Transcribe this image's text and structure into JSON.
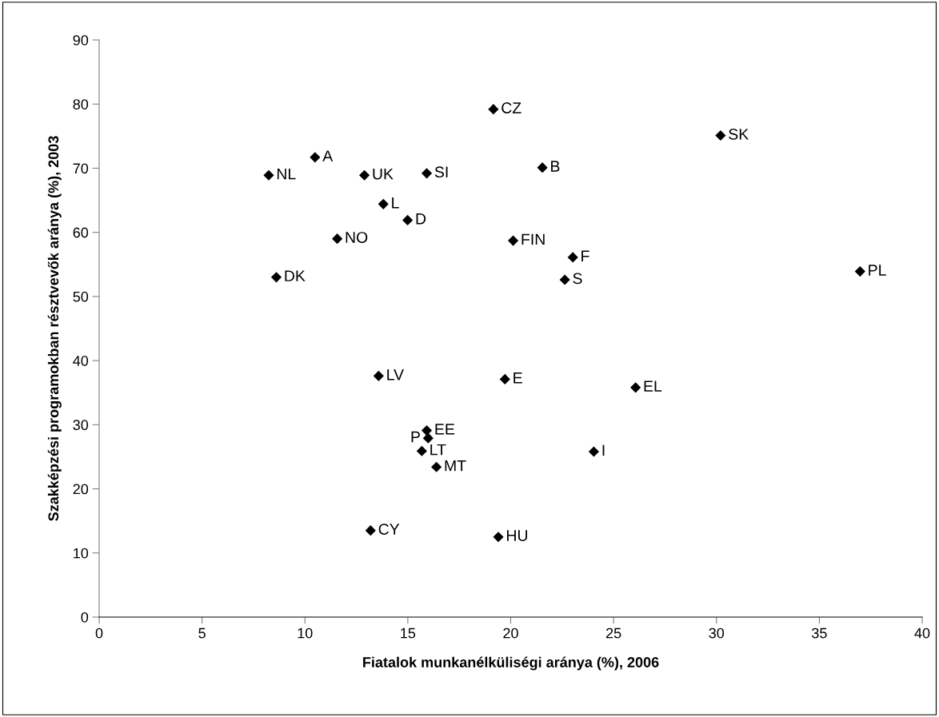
{
  "chart_data": {
    "type": "scatter",
    "xlabel": "Fiatalok munkanélküliségi aránya (%), 2006",
    "ylabel": "Szakképzési programokban résztvevők aránya (%), 2003",
    "x": [
      8.24,
      10.49,
      12.89,
      15.92,
      13.81,
      14.99,
      11.57,
      8.61,
      19.16,
      30.2,
      21.54,
      20.12,
      23.02,
      22.63,
      36.98,
      13.58,
      19.72,
      15.92,
      15.99,
      15.68,
      16.39,
      13.19,
      19.4,
      26.07,
      24.04
    ],
    "series": [
      {
        "color": "#000000",
        "values": [
          68.9,
          71.7,
          68.9,
          69.2,
          64.4,
          61.9,
          59.0,
          53.0,
          79.2,
          75.1,
          70.1,
          58.7,
          56.1,
          52.6,
          53.9,
          37.6,
          37.1,
          29.1,
          27.9,
          25.9,
          23.4,
          13.5,
          12.5,
          35.8,
          25.8
        ]
      }
    ],
    "annotations": [
      {
        "text": "NL",
        "x": 8.24,
        "y": 68.9
      },
      {
        "text": "A",
        "x": 10.49,
        "y": 71.7
      },
      {
        "text": "UK",
        "x": 12.89,
        "y": 68.9
      },
      {
        "text": "SI",
        "x": 15.92,
        "y": 69.2
      },
      {
        "text": "L",
        "x": 13.81,
        "y": 64.4
      },
      {
        "text": "D",
        "x": 14.99,
        "y": 61.9
      },
      {
        "text": "NO",
        "x": 11.57,
        "y": 59.0
      },
      {
        "text": "DK",
        "x": 8.61,
        "y": 53.0
      },
      {
        "text": "CZ",
        "x": 19.16,
        "y": 79.2
      },
      {
        "text": "SK",
        "x": 30.2,
        "y": 75.1
      },
      {
        "text": "B",
        "x": 21.54,
        "y": 70.1
      },
      {
        "text": "FIN",
        "x": 20.12,
        "y": 58.7
      },
      {
        "text": "F",
        "x": 23.02,
        "y": 56.1
      },
      {
        "text": "S",
        "x": 22.63,
        "y": 52.6
      },
      {
        "text": "PL",
        "x": 36.98,
        "y": 53.9
      },
      {
        "text": "LV",
        "x": 13.58,
        "y": 37.6
      },
      {
        "text": "E",
        "x": 19.72,
        "y": 37.1
      },
      {
        "text": "EE",
        "x": 15.92,
        "y": 29.1
      },
      {
        "text": "P",
        "x": 15.99,
        "y": 27.9
      },
      {
        "text": "LT",
        "x": 15.68,
        "y": 25.9
      },
      {
        "text": "MT",
        "x": 16.39,
        "y": 23.4
      },
      {
        "text": "CY",
        "x": 13.19,
        "y": 13.5
      },
      {
        "text": "HU",
        "x": 19.4,
        "y": 12.5
      },
      {
        "text": "EL",
        "x": 26.07,
        "y": 35.8
      },
      {
        "text": "I",
        "x": 24.04,
        "y": 25.8
      }
    ],
    "xlim": [
      0,
      40
    ],
    "xticks": [
      0,
      5,
      10,
      15,
      20,
      25,
      30,
      35,
      40
    ],
    "ylim": [
      0,
      90
    ],
    "yticks": [
      0,
      10,
      20,
      30,
      40,
      50,
      60,
      70,
      80,
      90
    ],
    "marker": "diamond",
    "grid": false,
    "legend": false
  }
}
